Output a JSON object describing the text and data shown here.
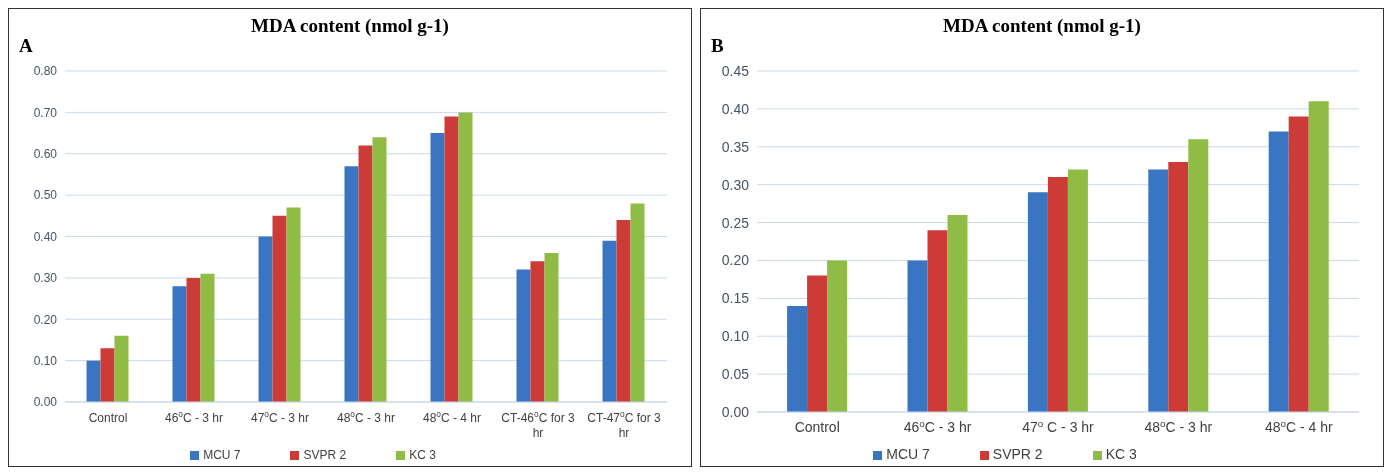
{
  "chart_data": [
    {
      "type": "bar",
      "title": "MDA content (nmol g-1)",
      "annotations": [
        "A"
      ],
      "categories": [
        "Control",
        "46$^{o}$C - 3 hr",
        "47$^{o}$C - 3 hr",
        "48$^{o}$C - 3 hr",
        "48$^{o}$C - 4 hr",
        "CT-46$^{o}$C for 3 hr",
        "CT-47$^{o}$C for 3 hr"
      ],
      "series": [
        {
          "name": "MCU 7",
          "color": "#3a75c4",
          "values": [
            0.1,
            0.28,
            0.4,
            0.57,
            0.65,
            0.32,
            0.39
          ]
        },
        {
          "name": "SVPR 2",
          "color": "#cc3b35",
          "values": [
            0.13,
            0.3,
            0.45,
            0.62,
            0.69,
            0.34,
            0.44
          ]
        },
        {
          "name": "KC 3",
          "color": "#8fbc44",
          "values": [
            0.16,
            0.31,
            0.47,
            0.64,
            0.7,
            0.36,
            0.48
          ]
        }
      ],
      "ylim": [
        0,
        0.8
      ],
      "yticks": [
        {
          "value": 0,
          "label": "0.00"
        },
        {
          "value": 0.1,
          "label": "0.10"
        },
        {
          "value": 0.2,
          "label": "0.20"
        },
        {
          "value": 0.3,
          "label": "0.30"
        },
        {
          "value": 0.4,
          "label": "0.40"
        },
        {
          "value": 0.5,
          "label": "0.50"
        },
        {
          "value": 0.6,
          "label": "0.60"
        },
        {
          "value": 0.7,
          "label": "0.70"
        },
        {
          "value": 0.8,
          "label": "0.80"
        }
      ],
      "grid": "y",
      "legend": "bottom"
    },
    {
      "type": "bar",
      "title": "MDA content (nmol g-1)",
      "annotations": [
        "B"
      ],
      "categories": [
        "Control",
        "46$^{o}$C - 3 hr",
        "47$^{o}$ C - 3 hr",
        "48$^{o}$C - 3 hr",
        "48$^{o}$C - 4 hr"
      ],
      "series": [
        {
          "name": "MCU 7",
          "color": "#3a75c4",
          "values": [
            0.14,
            0.2,
            0.29,
            0.32,
            0.37
          ]
        },
        {
          "name": "SVPR 2",
          "color": "#cc3b35",
          "values": [
            0.18,
            0.24,
            0.31,
            0.33,
            0.39
          ]
        },
        {
          "name": "KC 3",
          "color": "#8fbc44",
          "values": [
            0.2,
            0.26,
            0.32,
            0.36,
            0.41
          ]
        }
      ],
      "ylim": [
        0,
        0.45
      ],
      "yticks": [
        {
          "value": 0,
          "label": "0.00"
        },
        {
          "value": 0.05,
          "label": "0.05"
        },
        {
          "value": 0.1,
          "label": "0.10"
        },
        {
          "value": 0.15,
          "label": "0.15"
        },
        {
          "value": 0.2,
          "label": "0.20"
        },
        {
          "value": 0.25,
          "label": "0.25"
        },
        {
          "value": 0.3,
          "label": "0.30"
        },
        {
          "value": 0.35,
          "label": "0.35"
        },
        {
          "value": 0.4,
          "label": "0.40"
        },
        {
          "value": 0.45,
          "label": "0.45"
        }
      ],
      "grid": "y",
      "legend": "bottom"
    }
  ]
}
